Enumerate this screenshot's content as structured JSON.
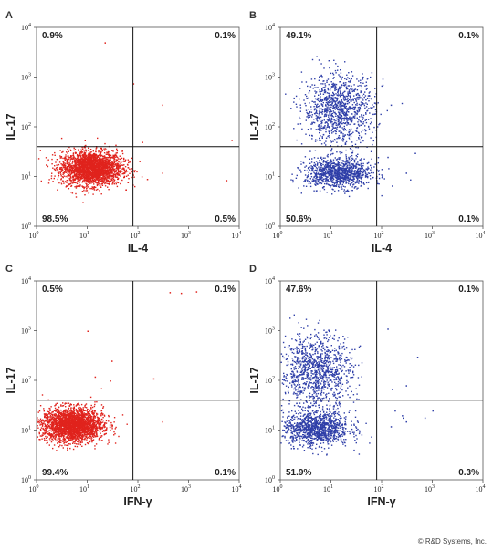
{
  "colors": {
    "red_dots": "#e0231d",
    "blue_dots": "#2f3fa8"
  },
  "copyright": "© R&D Systems, Inc.",
  "chart_data": [
    {
      "type": "scatter",
      "panel": "A",
      "xlabel": "IL-4",
      "ylabel": "IL-17",
      "xscale": "log",
      "yscale": "log",
      "xlim": [
        1,
        10000
      ],
      "ylim": [
        1,
        10000
      ],
      "x_ticks": [
        "10",
        "10",
        "10",
        "10",
        "10"
      ],
      "x_tick_exp": [
        "0",
        "1",
        "2",
        "3",
        "4"
      ],
      "y_ticks": [
        "10",
        "10",
        "10",
        "10",
        "10"
      ],
      "y_tick_exp": [
        "0",
        "1",
        "2",
        "3",
        "4"
      ],
      "gate": {
        "x": 80,
        "y": 40
      },
      "quadrants": {
        "upper_left": "0.9%",
        "upper_right": "0.1%",
        "lower_left": "98.5%",
        "lower_right": "0.5%"
      },
      "color": "red",
      "clusters": [
        {
          "cx": 12,
          "cy": 15,
          "sx": 0.3,
          "sy": 0.17,
          "n": 2600
        }
      ],
      "outliers": [
        [
          22,
          5000
        ],
        [
          80,
          750
        ],
        [
          5500,
          8.5
        ],
        [
          7000,
          55
        ],
        [
          150,
          9
        ],
        [
          300,
          280
        ],
        [
          300,
          12
        ],
        [
          120,
          50
        ]
      ]
    },
    {
      "type": "scatter",
      "panel": "B",
      "xlabel": "IL-4",
      "ylabel": "IL-17",
      "xscale": "log",
      "yscale": "log",
      "xlim": [
        1,
        10000
      ],
      "ylim": [
        1,
        10000
      ],
      "x_ticks": [
        "10",
        "10",
        "10",
        "10",
        "10"
      ],
      "x_tick_exp": [
        "0",
        "1",
        "2",
        "3",
        "4"
      ],
      "y_ticks": [
        "10",
        "10",
        "10",
        "10",
        "10"
      ],
      "y_tick_exp": [
        "0",
        "1",
        "2",
        "3",
        "4"
      ],
      "gate": {
        "x": 80,
        "y": 40
      },
      "quadrants": {
        "upper_left": "49.1%",
        "upper_right": "0.1%",
        "lower_left": "50.6%",
        "lower_right": "0.1%"
      },
      "color": "blue",
      "clusters": [
        {
          "cx": 14,
          "cy": 12,
          "sx": 0.33,
          "sy": 0.15,
          "n": 1100
        },
        {
          "cx": 14,
          "cy": 230,
          "sx": 0.35,
          "sy": 0.35,
          "n": 1100
        }
      ],
      "outliers": [
        [
          450,
          30
        ],
        [
          150,
          280
        ],
        [
          130,
          25
        ],
        [
          300,
          12
        ]
      ]
    },
    {
      "type": "scatter",
      "panel": "C",
      "xlabel": "IFN-γ",
      "ylabel": "IL-17",
      "xscale": "log",
      "yscale": "log",
      "xlim": [
        1,
        10000
      ],
      "ylim": [
        1,
        10000
      ],
      "x_ticks": [
        "10",
        "10",
        "10",
        "10",
        "10"
      ],
      "x_tick_exp": [
        "0",
        "1",
        "2",
        "3",
        "4"
      ],
      "y_ticks": [
        "10",
        "10",
        "10",
        "10",
        "10"
      ],
      "y_tick_exp": [
        "0",
        "1",
        "2",
        "3",
        "4"
      ],
      "gate": {
        "x": 80,
        "y": 40
      },
      "quadrants": {
        "upper_left": "0.5%",
        "upper_right": "0.1%",
        "lower_left": "99.4%",
        "lower_right": "0.1%"
      },
      "color": "red",
      "clusters": [
        {
          "cx": 5,
          "cy": 13,
          "sx": 0.3,
          "sy": 0.17,
          "n": 2600
        }
      ],
      "outliers": [
        [
          420,
          6000
        ],
        [
          700,
          5800
        ],
        [
          1400,
          6200
        ],
        [
          30,
          250
        ],
        [
          28,
          100
        ],
        [
          10,
          1000
        ],
        [
          200,
          110
        ],
        [
          300,
          15
        ],
        [
          14,
          120
        ]
      ]
    },
    {
      "type": "scatter",
      "panel": "D",
      "xlabel": "IFN-γ",
      "ylabel": "IL-17",
      "xscale": "log",
      "yscale": "log",
      "xlim": [
        1,
        10000
      ],
      "ylim": [
        1,
        10000
      ],
      "x_ticks": [
        "10",
        "10",
        "10",
        "10",
        "10"
      ],
      "x_tick_exp": [
        "0",
        "1",
        "2",
        "3",
        "4"
      ],
      "y_ticks": [
        "10",
        "10",
        "10",
        "10",
        "10"
      ],
      "y_tick_exp": [
        "0",
        "1",
        "2",
        "3",
        "4"
      ],
      "gate": {
        "x": 80,
        "y": 40
      },
      "quadrants": {
        "upper_left": "47.6%",
        "upper_right": "0.1%",
        "lower_left": "51.9%",
        "lower_right": "0.3%"
      },
      "color": "blue",
      "clusters": [
        {
          "cx": 5,
          "cy": 11,
          "sx": 0.33,
          "sy": 0.17,
          "n": 1100
        },
        {
          "cx": 5,
          "cy": 150,
          "sx": 0.35,
          "sy": 0.38,
          "n": 1100
        }
      ],
      "outliers": [
        [
          130,
          1100
        ],
        [
          180,
          25
        ],
        [
          250,
          20
        ],
        [
          300,
          80
        ],
        [
          500,
          300
        ],
        [
          700,
          18
        ],
        [
          1000,
          25
        ],
        [
          300,
          15
        ],
        [
          260,
          18
        ],
        [
          150,
          12
        ]
      ]
    }
  ]
}
